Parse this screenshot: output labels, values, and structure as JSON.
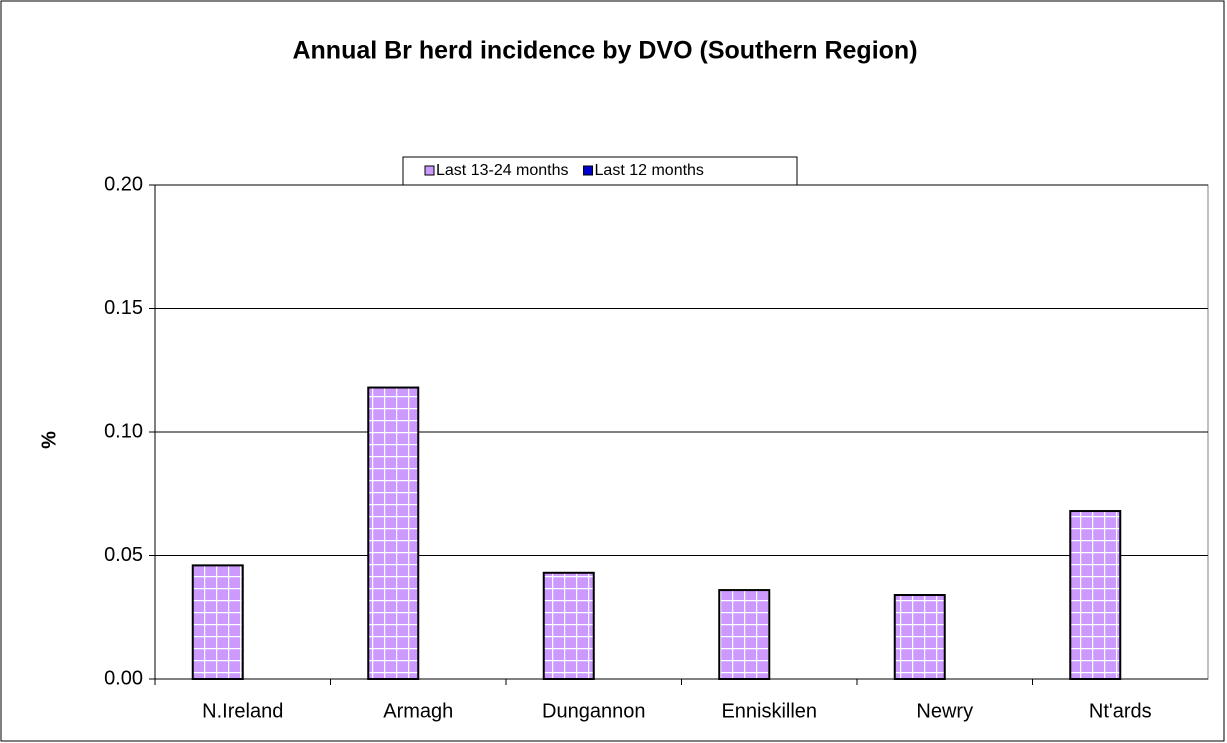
{
  "chart_data": {
    "type": "bar",
    "title": "Annual Br herd incidence by DVO (Southern Region)",
    "y_label": "%",
    "categories": [
      "N.Ireland",
      "Armagh",
      "Dungannon",
      "Enniskillen",
      "Newry",
      "Nt'ards"
    ],
    "series": [
      {
        "name": "Last 13-24 months",
        "color": "#cc99ff",
        "values": [
          0.046,
          0.118,
          0.043,
          0.036,
          0.034,
          0.068
        ]
      },
      {
        "name": "Last 12 months",
        "color": "#0000cc",
        "values": [
          0,
          0,
          0,
          0,
          0,
          0
        ]
      }
    ],
    "ylim": [
      0,
      0.2
    ],
    "yticks": [
      {
        "value": 0,
        "label": "0.00"
      },
      {
        "value": 0.05,
        "label": "0.05"
      },
      {
        "value": 0.1,
        "label": "0.10"
      },
      {
        "value": 0.15,
        "label": "0.15"
      },
      {
        "value": 0.2,
        "label": "0.20"
      }
    ],
    "grid": true
  }
}
